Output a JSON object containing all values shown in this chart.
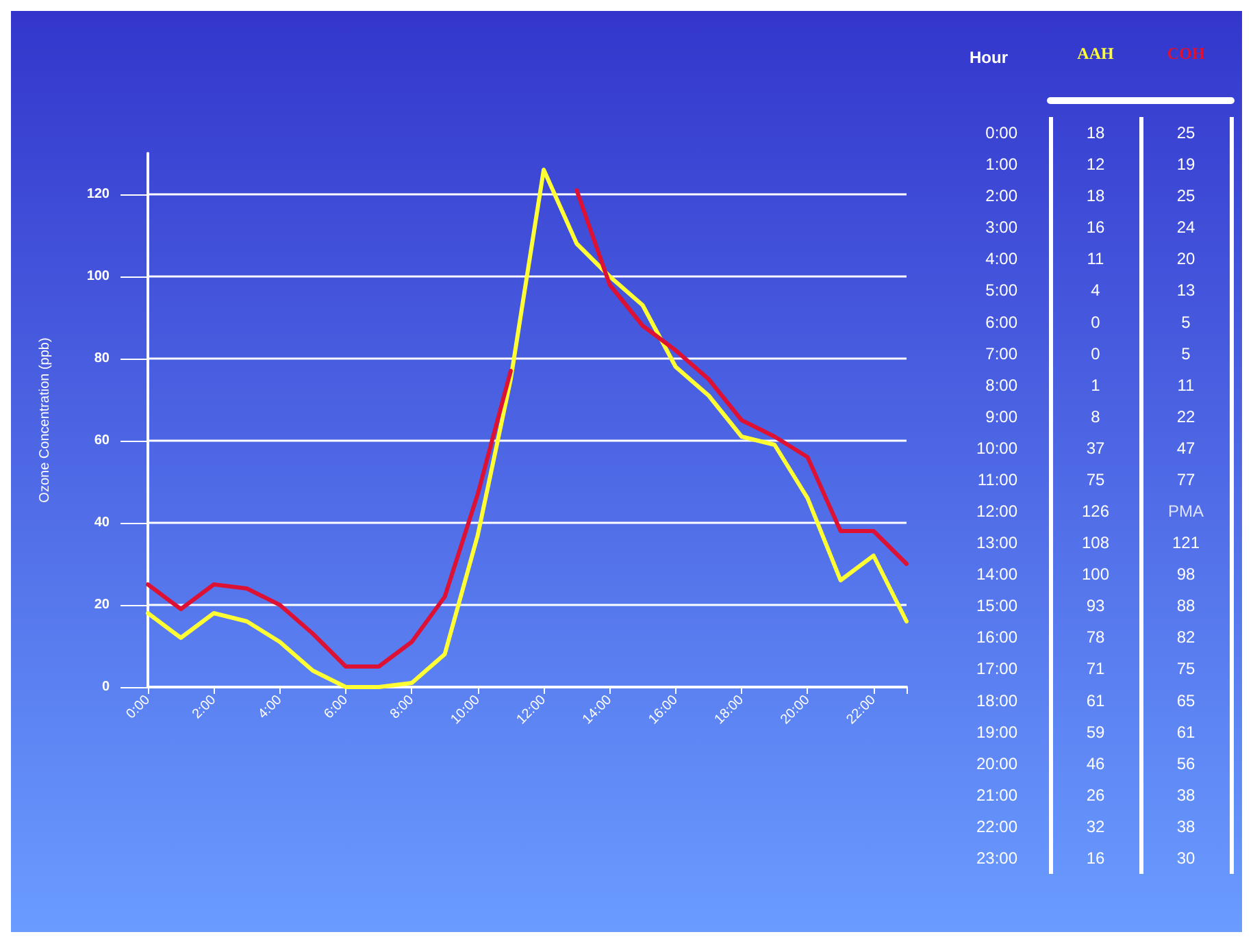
{
  "chart_data": [
    {
      "type": "line",
      "ylabel": "Ozone Concentration (ppb)",
      "categories": [
        "0:00",
        null,
        "2:00",
        null,
        "4:00",
        null,
        "6:00",
        null,
        "8:00",
        null,
        "10:00",
        null,
        "12:00",
        null,
        "14:00",
        null,
        "16:00",
        null,
        "18:00",
        null,
        "20:00",
        null,
        "22:00",
        null
      ],
      "series": [
        {
          "color": "#ffff33",
          "values": [
            18,
            12,
            18,
            16,
            11,
            4,
            0,
            0,
            1,
            8,
            37,
            75,
            126,
            108,
            100,
            93,
            78,
            71,
            61,
            59,
            46,
            26,
            32,
            16
          ]
        },
        {
          "color": "#dd1133",
          "values": [
            25,
            19,
            25,
            24,
            20,
            13,
            5,
            5,
            11,
            22,
            47,
            77,
            null,
            121,
            98,
            88,
            82,
            75,
            65,
            61,
            56,
            38,
            38,
            30
          ]
        }
      ],
      "ylim": [
        0,
        130
      ],
      "yticks": [
        0,
        20,
        40,
        60,
        80,
        100,
        120
      ],
      "grid": "y",
      "marker": "none",
      "line_style": "solid"
    },
    {
      "type": "heatmap",
      "ylabel": "Hour",
      "categories": [
        "AAH",
        "COH"
      ],
      "colors": [
        "#ffff33",
        "#dd1133"
      ],
      "y_categories": [
        "0:00",
        "1:00",
        "2:00",
        "3:00",
        "4:00",
        "5:00",
        "6:00",
        "7:00",
        "8:00",
        "9:00",
        "10:00",
        "11:00",
        "12:00",
        "13:00",
        "14:00",
        "15:00",
        "16:00",
        "17:00",
        "18:00",
        "19:00",
        "20:00",
        "21:00",
        "22:00",
        "23:00"
      ],
      "cells": [
        [
          18,
          25
        ],
        [
          12,
          19
        ],
        [
          18,
          25
        ],
        [
          16,
          24
        ],
        [
          11,
          20
        ],
        [
          4,
          13
        ],
        [
          0,
          5
        ],
        [
          0,
          5
        ],
        [
          1,
          11
        ],
        [
          8,
          22
        ],
        [
          37,
          47
        ],
        [
          75,
          77
        ],
        [
          126,
          null
        ],
        [
          108,
          121
        ],
        [
          100,
          98
        ],
        [
          93,
          88
        ],
        [
          78,
          82
        ],
        [
          71,
          75
        ],
        [
          61,
          65
        ],
        [
          59,
          61
        ],
        [
          46,
          56
        ],
        [
          26,
          38
        ],
        [
          32,
          38
        ],
        [
          16,
          30
        ]
      ],
      "data_labels": true,
      "annotations": [
        "PMA"
      ]
    }
  ]
}
